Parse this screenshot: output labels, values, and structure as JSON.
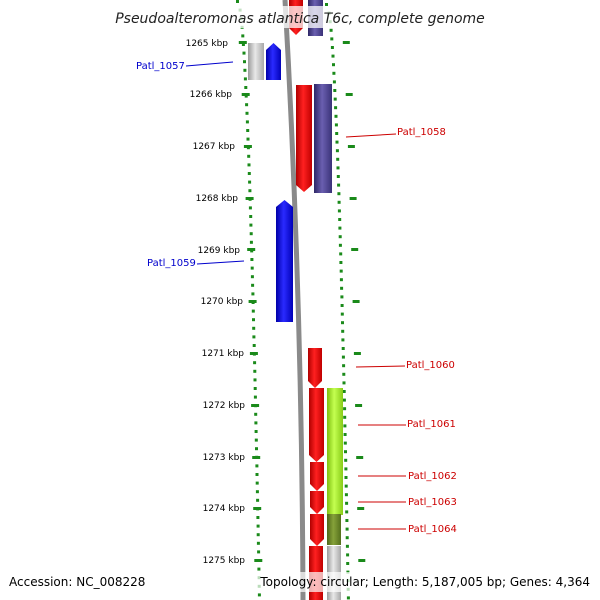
{
  "title": "Pseudoalteromonas atlantica T6c, complete genome",
  "footer": {
    "accession": "Accession: NC_008228",
    "summary": "Topology: circular; Length: 5,187,005 bp; Genes: 4,364"
  },
  "ticks": [
    "1265 kbp",
    "1266 kbp",
    "1267 kbp",
    "1268 kbp",
    "1269 kbp",
    "1270 kbp",
    "1271 kbp",
    "1272 kbp",
    "1273 kbp",
    "1274 kbp",
    "1275 kbp"
  ],
  "gene_labels": [
    {
      "id": "Patl_1057",
      "text": "Patl_1057",
      "color": "#0000cc"
    },
    {
      "id": "Patl_1058",
      "text": "Patl_1058",
      "color": "#cc0000"
    },
    {
      "id": "Patl_1059",
      "text": "Patl_1059",
      "color": "#0000cc"
    },
    {
      "id": "Patl_1060",
      "text": "Patl_1060",
      "color": "#cc0000"
    },
    {
      "id": "Patl_1061",
      "text": "Patl_1061",
      "color": "#cc0000"
    },
    {
      "id": "Patl_1062",
      "text": "Patl_1062",
      "color": "#cc0000"
    },
    {
      "id": "Patl_1063",
      "text": "Patl_1063",
      "color": "#cc0000"
    },
    {
      "id": "Patl_1064",
      "text": "Patl_1064",
      "color": "#cc0000"
    }
  ],
  "colors": {
    "forward": "#ff0000",
    "reverse": "#0000ff",
    "navy": "#4a3f8a",
    "lime": "#a6f021",
    "olive": "#6e8a2a",
    "grey": "#bbbbbb",
    "tick": "#1a8a1a",
    "backbone": "#888888"
  }
}
